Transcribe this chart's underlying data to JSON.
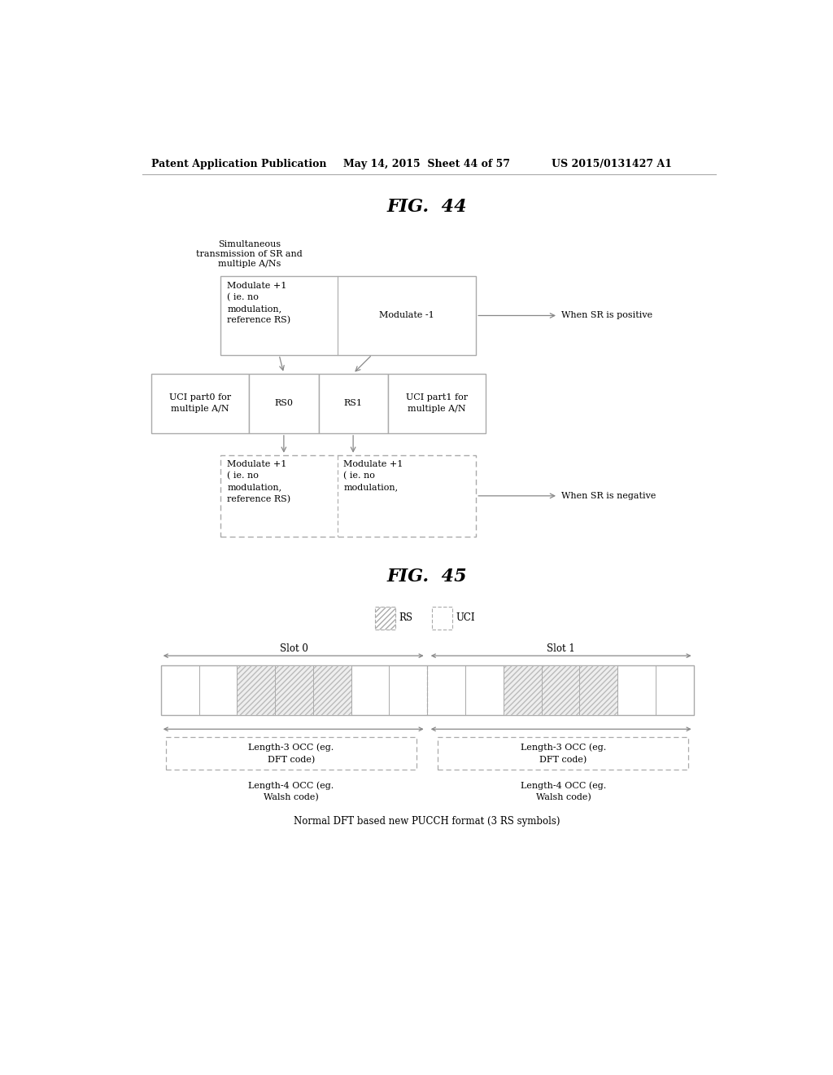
{
  "background_color": "#ffffff",
  "header_left": "Patent Application Publication",
  "header_mid": "May 14, 2015  Sheet 44 of 57",
  "header_right": "US 2015/0131427 A1",
  "fig44_title": "FIG.  44",
  "fig45_title": "FIG.  45",
  "fig44": {
    "top_label": "Simultaneous\ntransmission of SR and\nmultiple A/Ns",
    "box_top_left": "Modulate +1\n( ie. no\nmodulation,\nreference RS)",
    "box_top_right_label": "Modulate -1",
    "arrow_top_right_label": "When SR is positive",
    "row_cells": [
      "UCI part0 for\nmultiple A/N",
      "RS0",
      "RS1",
      "UCI part1 for\nmultiple A/N"
    ],
    "box_bot_left": "Modulate +1\n( ie. no\nmodulation,\nreference RS)",
    "box_bot_right": "Modulate +1\n( ie. no\nmodulation,",
    "arrow_bot_label": "When SR is negative"
  },
  "fig45": {
    "legend_rs": "RS",
    "legend_uci": "UCI",
    "slot0_label": "Slot 0",
    "slot1_label": "Slot 1",
    "occ_label_slot0_3": "Length-3 OCC (eg.\nDFT code)",
    "occ_label_slot0_4": "Length-4 OCC (eg.\nWalsh code)",
    "occ_label_slot1_3": "Length-3 OCC (eg.\nDFT code)",
    "occ_label_slot1_4": "Length-4 OCC (eg.\nWalsh code)",
    "bottom_label": "Normal DFT based new PUCCH format (3 RS symbols)"
  }
}
